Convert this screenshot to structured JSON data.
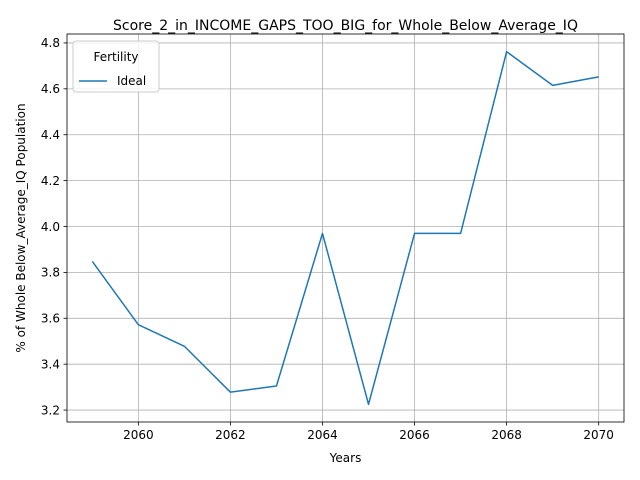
{
  "chart_data": {
    "type": "line",
    "title": "Score_2_in_INCOME_GAPS_TOO_BIG_for_Whole_Below_Average_IQ",
    "xlabel": "Years",
    "ylabel": "% of Whole Below_Average_IQ Population",
    "x": [
      2059,
      2060,
      2061,
      2062,
      2063,
      2064,
      2065,
      2066,
      2067,
      2068,
      2069,
      2070
    ],
    "series": [
      {
        "name": "Ideal",
        "color": "#1f77b4",
        "values": [
          3.848,
          3.572,
          3.478,
          3.278,
          3.305,
          3.97,
          3.225,
          3.97,
          3.97,
          4.762,
          4.615,
          4.652
        ]
      }
    ],
    "xlim": [
      2058.45,
      2070.55
    ],
    "ylim": [
      3.148,
      4.839
    ],
    "xticks": [
      "2060",
      "2062",
      "2064",
      "2066",
      "2068",
      "2070"
    ],
    "yticks": [
      "3.2",
      "3.4",
      "3.6",
      "3.8",
      "4.0",
      "4.2",
      "4.4",
      "4.6",
      "4.8"
    ],
    "grid": true,
    "legend": {
      "title": "Fertility",
      "placement": "top-left"
    }
  }
}
